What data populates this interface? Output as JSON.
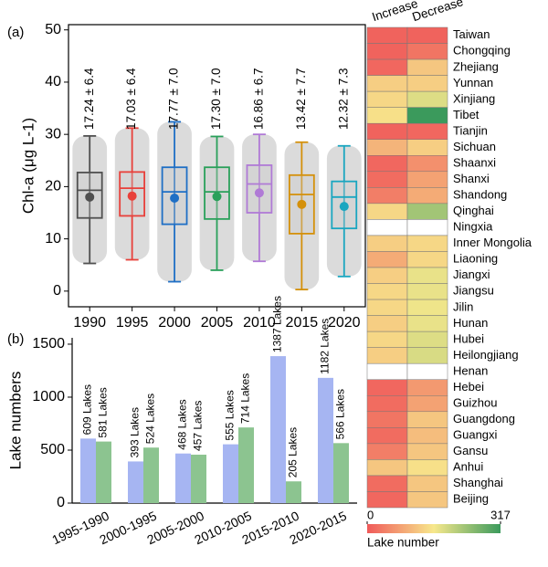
{
  "chart_data": [
    {
      "type": "box",
      "panel_label": "(a)",
      "y_label": "Chl-a (μg L-1)",
      "categories": [
        "1990",
        "1995",
        "2000",
        "2005",
        "2010",
        "2015",
        "2020"
      ],
      "low": [
        5.3,
        6,
        1.8,
        4,
        5.7,
        0.3,
        2.8
      ],
      "q1": [
        14,
        14.4,
        12.8,
        13.8,
        15,
        11,
        12
      ],
      "median": [
        19.3,
        19.7,
        19,
        19,
        20.5,
        18.5,
        18
      ],
      "q3": [
        22.7,
        22.8,
        23.7,
        23.7,
        24.1,
        22.2,
        21
      ],
      "high": [
        29.7,
        31.2,
        32.4,
        29.6,
        30,
        28.5,
        27.8
      ],
      "mean": [
        18,
        18.2,
        17.8,
        18.1,
        18.8,
        16.6,
        16.2
      ],
      "colors": [
        "#505050",
        "#e8403a",
        "#1f6fc5",
        "#2aa05a",
        "#b07ad6",
        "#d4900a",
        "#1aa6c0"
      ],
      "annotations": [
        "17.24 ± 6.4",
        "17.03 ± 6.4",
        "17.77 ± 7.0",
        "17.30 ± 7.0",
        "16.86 ± 6.7",
        "13.42 ± 7.7",
        "12.32 ± 7.3"
      ],
      "annotation_color": "#1f3fc0",
      "ylim": [
        -3,
        51
      ],
      "yticks": [
        0,
        10,
        20,
        30,
        40,
        50
      ]
    },
    {
      "type": "bar",
      "panel_label": "(b)",
      "y_label": "Lake numbers",
      "categories": [
        "1995-1990",
        "2000-1995",
        "2005-2000",
        "2010-2005",
        "2015-2010",
        "2020-2015"
      ],
      "series": [
        {
          "color": "#a6b5f2",
          "label_color": "#5065c8",
          "values": [
            609,
            393,
            468,
            555,
            1387,
            1182
          ],
          "value_labels": [
            "609 Lakes",
            "393 Lakes",
            "468 Lakes",
            "555 Lakes",
            "1387 Lakes",
            "1182 Lakes"
          ]
        },
        {
          "color": "#8cc490",
          "label_color": "#2e7d32",
          "values": [
            581,
            524,
            457,
            714,
            205,
            566
          ],
          "value_labels": [
            "581 Lakes",
            "524 Lakes",
            "457 Lakes",
            "714 Lakes",
            "205 Lakes",
            "566 Lakes"
          ]
        }
      ],
      "ylim": [
        0,
        1560
      ],
      "yticks": [
        0,
        500,
        1000,
        1500
      ]
    },
    {
      "type": "heatmap",
      "columns": [
        "Increase",
        "Decrease"
      ],
      "rows": [
        "Taiwan",
        "Chongqing",
        "Zhejiang",
        "Yunnan",
        "Xinjiang",
        "Tibet",
        "Tianjin",
        "Sichuan",
        "Shaanxi",
        "Shanxi",
        "Shandong",
        "Qinghai",
        "Ningxia",
        "Inner Mongolia",
        "Liaoning",
        "Jiangxi",
        "Jiangsu",
        "Jilin",
        "Hunan",
        "Hubei",
        "Heilongjiang",
        "Henan",
        "Hebei",
        "Guizhou",
        "Guangdong",
        "Guangxi",
        "Gansu",
        "Anhui",
        "Shanghai",
        "Beijing"
      ],
      "values": [
        [
          10,
          10
        ],
        [
          10,
          30
        ],
        [
          15,
          120
        ],
        [
          130,
          130
        ],
        [
          140,
          180
        ],
        [
          150,
          317
        ],
        [
          10,
          15
        ],
        [
          100,
          130
        ],
        [
          15,
          60
        ],
        [
          20,
          80
        ],
        [
          40,
          90
        ],
        [
          140,
          230
        ],
        [
          null,
          null
        ],
        [
          130,
          140
        ],
        [
          90,
          140
        ],
        [
          130,
          170
        ],
        [
          140,
          170
        ],
        [
          140,
          165
        ],
        [
          130,
          170
        ],
        [
          140,
          180
        ],
        [
          130,
          185
        ],
        [
          null,
          null
        ],
        [
          15,
          70
        ],
        [
          20,
          80
        ],
        [
          30,
          120
        ],
        [
          20,
          110
        ],
        [
          40,
          120
        ],
        [
          120,
          150
        ],
        [
          20,
          120
        ],
        [
          15,
          120
        ]
      ],
      "colors": [
        "#f05a5a",
        "#f7e88c",
        "#3b9a5c"
      ],
      "clim": [
        0,
        317
      ],
      "cticks": [
        0,
        317
      ],
      "colorbar_label": "Lake number"
    }
  ]
}
